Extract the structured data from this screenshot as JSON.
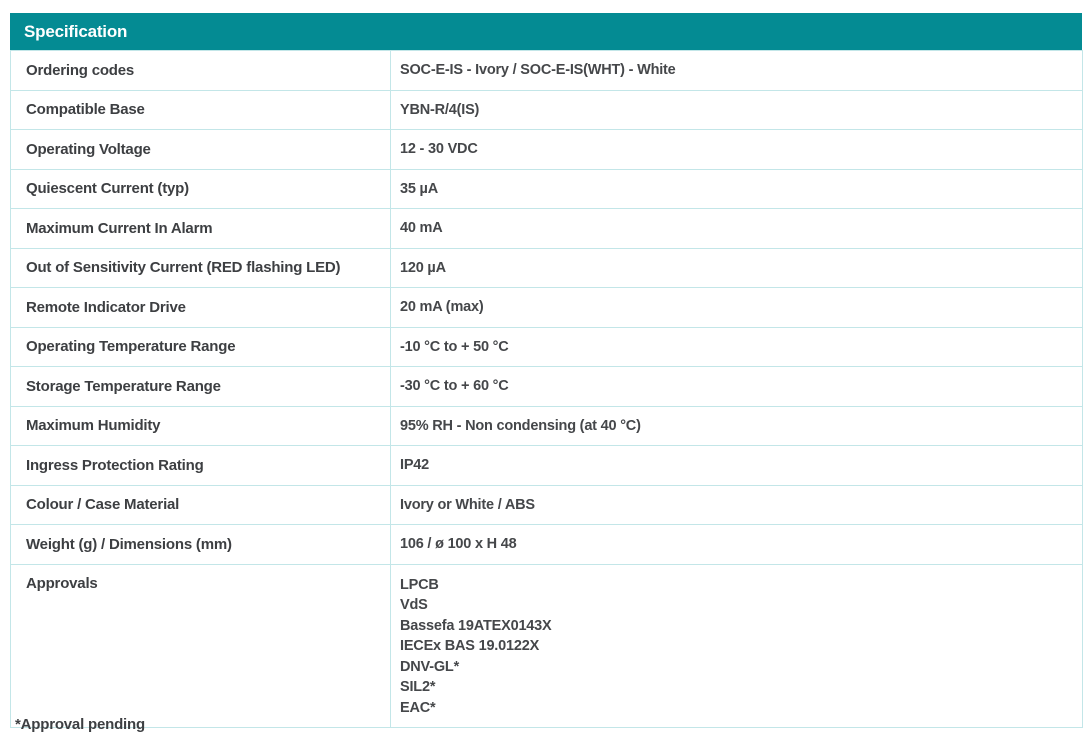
{
  "table": {
    "title": "Specification",
    "rows": [
      {
        "label": "Ordering codes",
        "values": [
          "SOC-E-IS - Ivory / SOC-E-IS(WHT) - White"
        ]
      },
      {
        "label": "Compatible Base",
        "values": [
          "YBN-R/4(IS)"
        ]
      },
      {
        "label": "Operating Voltage",
        "values": [
          "12 - 30 VDC"
        ]
      },
      {
        "label": "Quiescent Current (typ)",
        "values": [
          "35 µA"
        ]
      },
      {
        "label": "Maximum Current In Alarm",
        "values": [
          "40 mA"
        ]
      },
      {
        "label": "Out of Sensitivity Current (RED flashing LED)",
        "values": [
          "120 µA"
        ]
      },
      {
        "label": "Remote Indicator Drive",
        "values": [
          "20 mA (max)"
        ]
      },
      {
        "label": "Operating Temperature Range",
        "values": [
          "-10 °C to + 50 °C"
        ]
      },
      {
        "label": "Storage Temperature Range",
        "values": [
          "-30 °C to + 60 °C"
        ]
      },
      {
        "label": "Maximum Humidity",
        "values": [
          "95% RH - Non condensing (at 40 °C)"
        ]
      },
      {
        "label": "Ingress Protection Rating",
        "values": [
          "IP42"
        ]
      },
      {
        "label": "Colour / Case Material",
        "values": [
          "Ivory or White / ABS"
        ]
      },
      {
        "label": "Weight (g) / Dimensions (mm)",
        "values": [
          "106 / ø 100 x H 48"
        ]
      },
      {
        "label": "Approvals",
        "values": [
          "LPCB",
          "VdS",
          "Bassefa 19ATEX0143X",
          "IECEx BAS 19.0122X",
          "DNV-GL*",
          "SIL2*",
          "EAC*"
        ]
      }
    ]
  },
  "footnote": "*Approval pending",
  "colors": {
    "header_bg": "#048b93",
    "header_text": "#ffffff",
    "border": "#c3e6e8",
    "label_text": "#3d3f42",
    "value_text": "#45474a",
    "page_bg": "#ffffff"
  }
}
